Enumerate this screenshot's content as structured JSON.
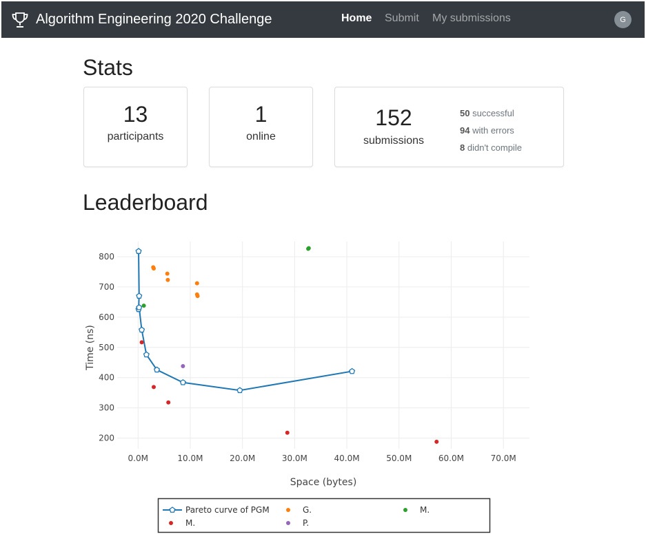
{
  "navbar": {
    "brand_icon": "trophy-icon",
    "title": "Algorithm Engineering 2020 Challenge",
    "links": [
      {
        "label": "Home",
        "active": true
      },
      {
        "label": "Submit",
        "active": false
      },
      {
        "label": "My submissions",
        "active": false
      }
    ],
    "avatar_initial": "G",
    "bg_color": "#343a40"
  },
  "stats": {
    "heading": "Stats",
    "participants": {
      "value": "13",
      "label": "participants"
    },
    "online": {
      "value": "1",
      "label": "online"
    },
    "submissions": {
      "value": "152",
      "label": "submissions",
      "breakdown": [
        {
          "count": "50",
          "text": "successful"
        },
        {
          "count": "94",
          "text": "with errors"
        },
        {
          "count": "8",
          "text": "didn't compile"
        }
      ]
    }
  },
  "leaderboard": {
    "heading": "Leaderboard"
  },
  "chart_data": {
    "type": "scatter",
    "xlabel": "Space (bytes)",
    "ylabel": "Time (ns)",
    "xlim": [
      -4000000,
      75000000
    ],
    "ylim": [
      165,
      850
    ],
    "x_ticks": [
      {
        "value": 0,
        "label": "0.0M"
      },
      {
        "value": 10000000,
        "label": "10.0M"
      },
      {
        "value": 20000000,
        "label": "20.0M"
      },
      {
        "value": 30000000,
        "label": "30.0M"
      },
      {
        "value": 40000000,
        "label": "40.0M"
      },
      {
        "value": 50000000,
        "label": "50.0M"
      },
      {
        "value": 60000000,
        "label": "60.0M"
      },
      {
        "value": 70000000,
        "label": "70.0M"
      }
    ],
    "y_ticks": [
      200,
      300,
      400,
      500,
      600,
      700,
      800
    ],
    "grid": true,
    "legend_position": "bottom",
    "series": [
      {
        "name": "Pareto curve of PGM",
        "mode": "lines+markers",
        "color": "#1f77b4",
        "x": [
          100000,
          200000,
          100000,
          200000,
          700000,
          1600000,
          3600000,
          8600000,
          19500000,
          41000000
        ],
        "y": [
          818,
          670,
          626,
          632,
          558,
          476,
          426,
          384,
          358,
          421
        ]
      },
      {
        "name": "G.",
        "mode": "markers",
        "color": "#ff7f0e",
        "x": [
          2900000,
          3000000,
          5600000,
          5700000,
          11300000,
          11300000,
          11400000
        ],
        "y": [
          765,
          761,
          744,
          723,
          712,
          675,
          670
        ]
      },
      {
        "name": "M.",
        "mode": "markers",
        "color": "#2ca02c",
        "x": [
          1100000,
          32600000,
          32700000
        ],
        "y": [
          638,
          826,
          828
        ]
      },
      {
        "name": "M.",
        "mode": "markers",
        "color": "#d62728",
        "x": [
          700000,
          3000000,
          5800000,
          28600000,
          57200000
        ],
        "y": [
          517,
          369,
          318,
          218,
          188
        ]
      },
      {
        "name": "P.",
        "mode": "markers",
        "color": "#9467bd",
        "x": [
          8600000
        ],
        "y": [
          438
        ]
      }
    ]
  }
}
